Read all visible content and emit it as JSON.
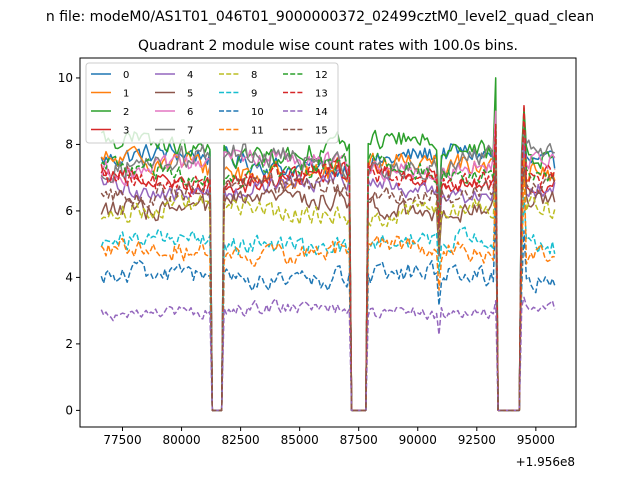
{
  "chart_data": {
    "type": "line",
    "suptitle": "n file: modeM0/AS1T01_046T01_9000000372_02499cztM0_level2_quad_clean",
    "title": "Quadrant 2 module wise count rates with 100.0s bins.",
    "xlabel": "",
    "ylabel": "",
    "x_offset_label": "+1.956e8",
    "xlim": [
      75700,
      96700
    ],
    "ylim": [
      -0.5,
      10.6
    ],
    "xticks": [
      77500,
      80000,
      82500,
      85000,
      87500,
      90000,
      92500,
      95000
    ],
    "yticks": [
      0,
      2,
      4,
      6,
      8,
      10
    ],
    "x_range": [
      76600,
      95800
    ],
    "x_step": 100,
    "gaps": [
      [
        81300,
        81700
      ],
      [
        87200,
        87800
      ],
      [
        93400,
        94300
      ]
    ],
    "spikes": [
      {
        "x": 93300,
        "values": [
          8.0,
          8.5,
          10.0,
          8.2,
          7.6,
          7.0,
          9.0,
          7.8,
          7.4,
          6.8,
          6.2,
          7.0,
          8.3,
          8.6,
          3.3,
          7.2
        ]
      },
      {
        "x": 94500,
        "values": [
          8.8,
          8.6,
          9.1,
          8.4,
          8.0,
          7.4,
          8.5,
          8.6,
          7.0,
          6.4,
          5.4,
          7.6,
          8.9,
          9.2,
          3.4,
          7.3
        ]
      }
    ],
    "dips": [
      {
        "x": 90900,
        "factor": 0.78
      }
    ],
    "legend_position": "upper-left",
    "series": [
      {
        "name": "0",
        "mean": 7.5,
        "noise": 0.22,
        "dash": "solid",
        "color": "#1f77b4"
      },
      {
        "name": "1",
        "mean": 7.3,
        "noise": 0.25,
        "dash": "solid",
        "color": "#ff7f0e"
      },
      {
        "name": "2",
        "mean": 7.9,
        "noise": 0.22,
        "dash": "solid",
        "color": "#2ca02c"
      },
      {
        "name": "3",
        "mean": 7.0,
        "noise": 0.2,
        "dash": "solid",
        "color": "#d62728"
      },
      {
        "name": "4",
        "mean": 6.7,
        "noise": 0.2,
        "dash": "solid",
        "color": "#9467bd"
      },
      {
        "name": "5",
        "mean": 6.2,
        "noise": 0.22,
        "dash": "solid",
        "color": "#8c564b"
      },
      {
        "name": "6",
        "mean": 7.4,
        "noise": 0.22,
        "dash": "solid",
        "color": "#e377c2"
      },
      {
        "name": "7",
        "mean": 7.5,
        "noise": 0.25,
        "dash": "solid",
        "color": "#7f7f7f"
      },
      {
        "name": "8",
        "mean": 6.0,
        "noise": 0.22,
        "dash": "dashed",
        "color": "#bcbd22"
      },
      {
        "name": "9",
        "mean": 5.0,
        "noise": 0.22,
        "dash": "dashed",
        "color": "#17becf"
      },
      {
        "name": "10",
        "mean": 4.0,
        "noise": 0.22,
        "dash": "dashed",
        "color": "#1f77b4"
      },
      {
        "name": "11",
        "mean": 4.8,
        "noise": 0.22,
        "dash": "dashed",
        "color": "#ff7f0e"
      },
      {
        "name": "12",
        "mean": 7.2,
        "noise": 0.22,
        "dash": "dashed",
        "color": "#2ca02c"
      },
      {
        "name": "13",
        "mean": 7.0,
        "noise": 0.22,
        "dash": "dashed",
        "color": "#d62728"
      },
      {
        "name": "14",
        "mean": 3.0,
        "noise": 0.15,
        "dash": "dashed",
        "color": "#9467bd"
      },
      {
        "name": "15",
        "mean": 6.6,
        "noise": 0.22,
        "dash": "dashed",
        "color": "#8c564b"
      }
    ]
  }
}
